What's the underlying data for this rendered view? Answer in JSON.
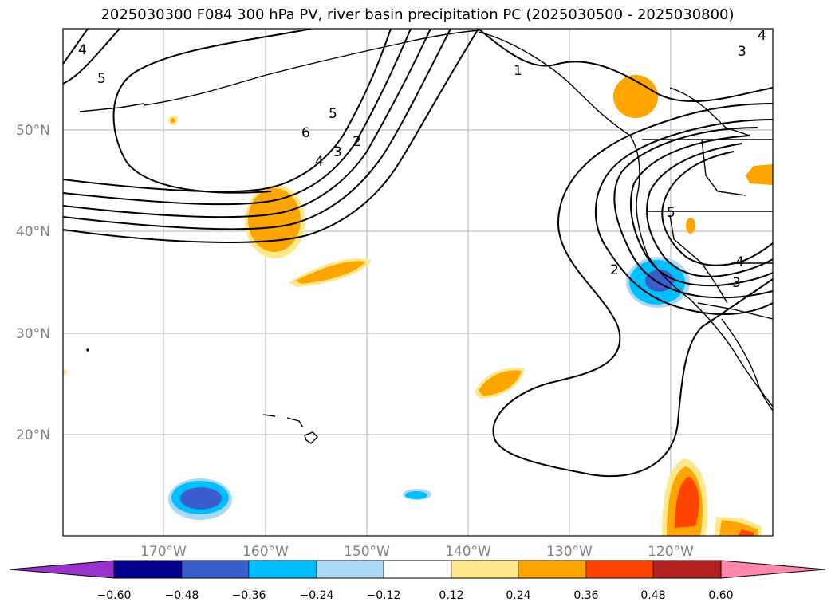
{
  "title": "2025030300 F084 300 hPa PV, river basin precipitation PC (2025030500 - 2025030800)",
  "lat_labels": [
    "50°N",
    "40°N",
    "30°N",
    "20°N"
  ],
  "lon_labels": [
    "170°W",
    "160°W",
    "150°W",
    "140°W",
    "130°W",
    "120°W"
  ],
  "pv_contour_labels": [
    "4",
    "5",
    "6",
    "5",
    "4",
    "3",
    "2",
    "1",
    "3",
    "4",
    "2",
    "5",
    "4",
    "3"
  ],
  "colorbar": {
    "colors": [
      "#9933cc",
      "#00008b",
      "#3a5fcd",
      "#00bfff",
      "#add8f5",
      "#ffffff",
      "#ffe88a",
      "#ffa500",
      "#ff4500",
      "#b22222",
      "#ff88aa"
    ],
    "tick_labels": [
      "−0.60",
      "−0.48",
      "−0.36",
      "−0.24",
      "−0.12",
      "0.12",
      "0.24",
      "0.36",
      "0.48",
      "0.60"
    ]
  }
}
